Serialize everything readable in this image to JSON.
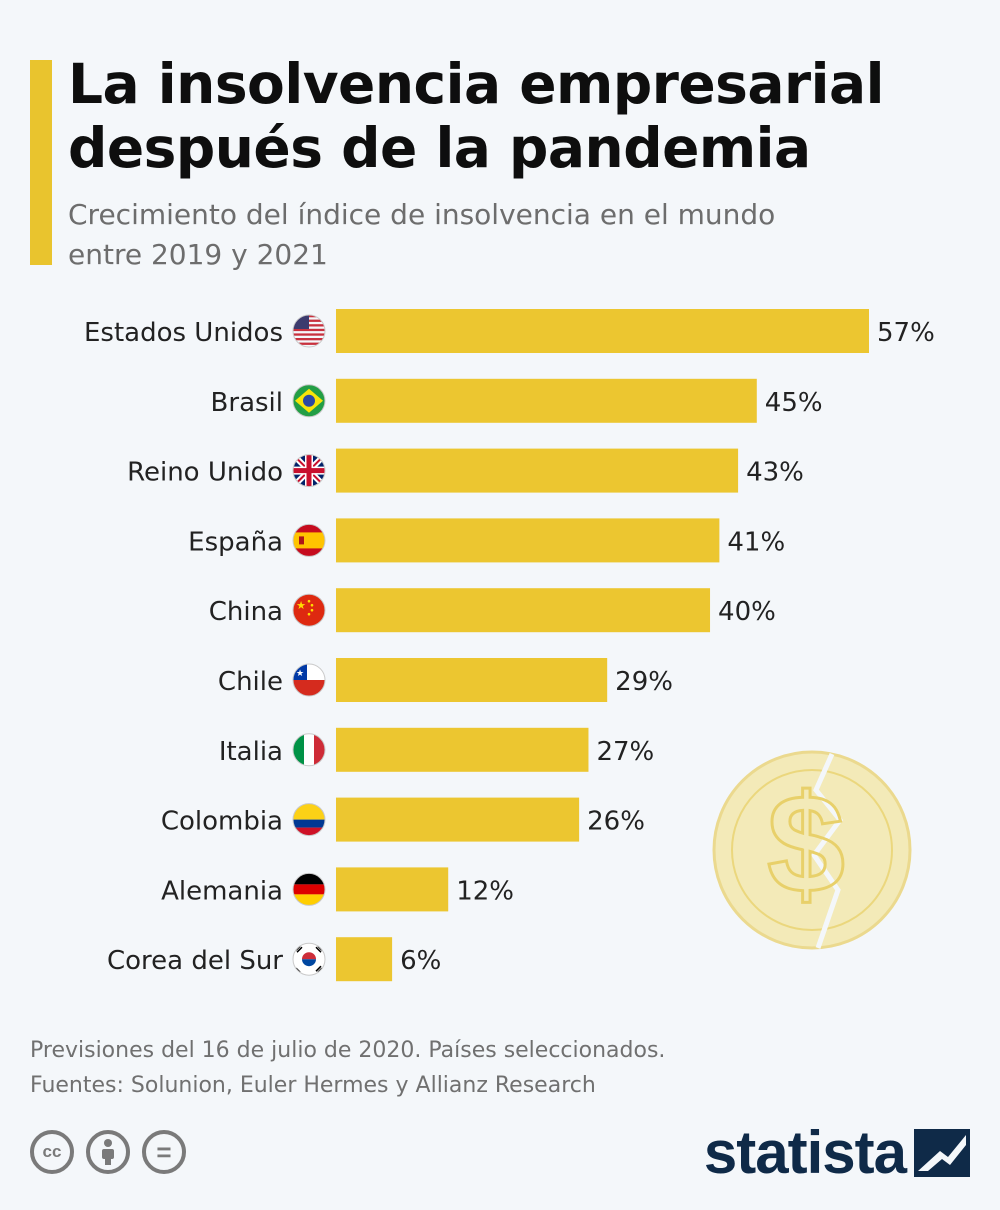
{
  "header": {
    "title_line1": "La insolvencia empresarial",
    "title_line2": "después de la pandemia",
    "subtitle_line1": "Crecimiento del índice de insolvencia en el mundo",
    "subtitle_line2": "entre 2019 y 2021"
  },
  "colors": {
    "bar": "#ecc630",
    "accent": "#e9c42e",
    "text": "#222222",
    "coin": "#f3e6a2",
    "coin_stroke": "#e8d06a"
  },
  "chart_data": {
    "type": "bar",
    "orientation": "horizontal",
    "title": "La insolvencia empresarial después de la pandemia",
    "subtitle": "Crecimiento del índice de insolvencia en el mundo entre 2019 y 2021",
    "xlabel": "",
    "ylabel": "",
    "unit": "%",
    "xlim": [
      0,
      57
    ],
    "grid": false,
    "legend": "none",
    "categories": [
      "Estados Unidos",
      "Brasil",
      "Reino Unido",
      "España",
      "China",
      "Chile",
      "Italia",
      "Colombia",
      "Alemania",
      "Corea del Sur"
    ],
    "values": [
      57,
      45,
      43,
      41,
      40,
      29,
      27,
      26,
      12,
      6
    ],
    "labels": [
      "57%",
      "45%",
      "43%",
      "41%",
      "40%",
      "29%",
      "27%",
      "26%",
      "12%",
      "6%"
    ],
    "flags": [
      "us-flag-icon",
      "brazil-flag-icon",
      "uk-flag-icon",
      "spain-flag-icon",
      "china-flag-icon",
      "chile-flag-icon",
      "italy-flag-icon",
      "colombia-flag-icon",
      "germany-flag-icon",
      "south-korea-flag-icon"
    ]
  },
  "footer": {
    "note": "Previsiones del 16 de julio de 2020. Países seleccionados.",
    "sources": "Fuentes: Solunion, Euler Hermes y Allianz Research"
  },
  "license": {
    "cc_label": "cc",
    "nd_label": "="
  },
  "brand": {
    "name": "statista"
  },
  "decoration": {
    "coin_symbol": "$"
  }
}
